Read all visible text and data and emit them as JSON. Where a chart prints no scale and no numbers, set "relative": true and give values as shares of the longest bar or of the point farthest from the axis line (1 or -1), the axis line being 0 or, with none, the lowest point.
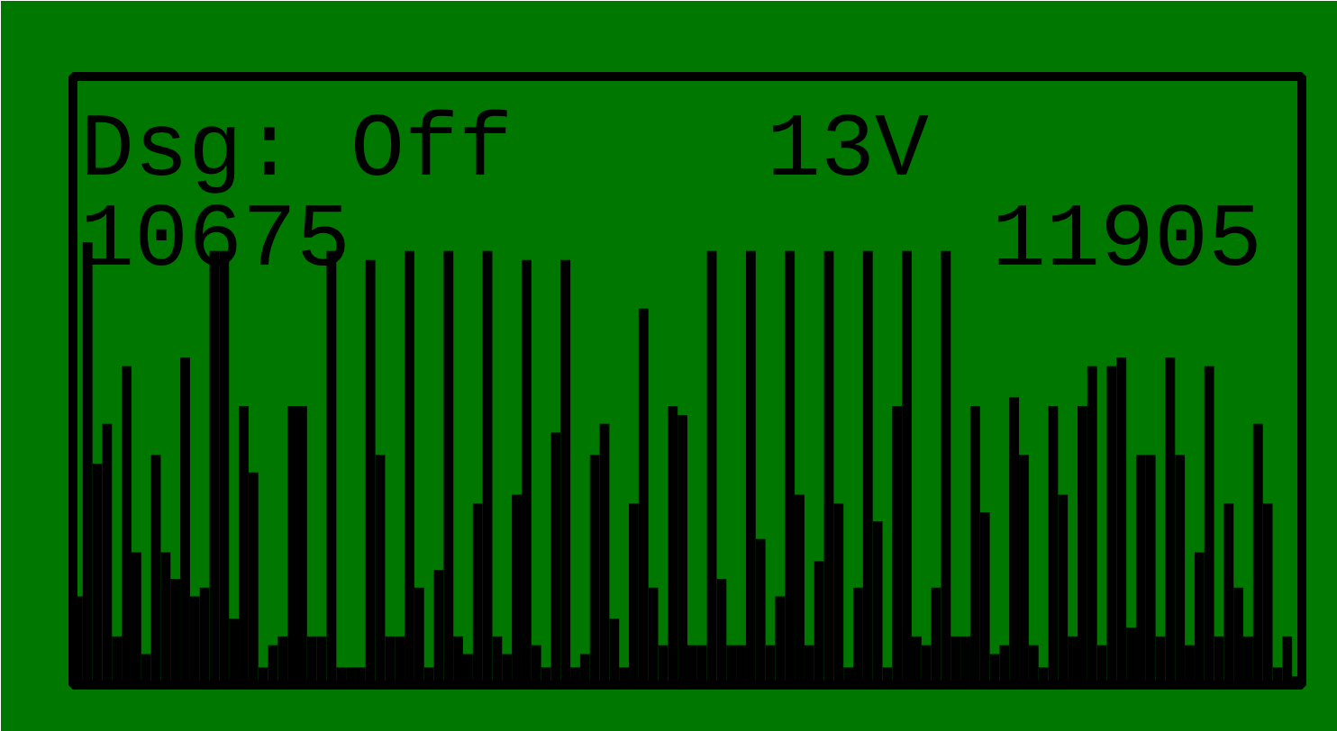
{
  "chart_data": {
    "type": "bar",
    "relative": true,
    "color": "#000000",
    "annotations": [
      "Dsg: Off",
      "13V",
      "10675",
      "11905"
    ],
    "categories": [
      null,
      null,
      null,
      null,
      null,
      null,
      null,
      null,
      null,
      null,
      null,
      null,
      null,
      null,
      null,
      null,
      null,
      null,
      null,
      null,
      null,
      null,
      null,
      null,
      null,
      null,
      null,
      null,
      null,
      null,
      null,
      null,
      null,
      null,
      null,
      null,
      null,
      null,
      null,
      null,
      null,
      null,
      null,
      null,
      null,
      null,
      null,
      null,
      null,
      null,
      null,
      null,
      null,
      null,
      null,
      null,
      null,
      null,
      null,
      null,
      null,
      null,
      null,
      null,
      null,
      null,
      null,
      null,
      null,
      null,
      null,
      null,
      null,
      null,
      null,
      null,
      null,
      null,
      null,
      null,
      null,
      null,
      null,
      null,
      null,
      null,
      null,
      null,
      null,
      null,
      null,
      null,
      null,
      null,
      null,
      null,
      null,
      null,
      null,
      null,
      null,
      null,
      null,
      null,
      null,
      null,
      null,
      null,
      null,
      null,
      null,
      null,
      null,
      null,
      null,
      null,
      null,
      null,
      null,
      null,
      null,
      null,
      null,
      null,
      null,
      null
    ],
    "values": [
      0.2,
      1,
      0.5,
      0.59,
      0.11,
      0.72,
      0.3,
      0.07,
      0.52,
      0.3,
      0.24,
      0.74,
      0.2,
      0.22,
      0.98,
      0.98,
      0.15,
      0.63,
      0.48,
      0.04,
      0.09,
      0.11,
      0.63,
      0.63,
      0.11,
      0.11,
      0.98,
      0.04,
      0.04,
      0.04,
      0.96,
      0.52,
      0.11,
      0.11,
      0.98,
      0.22,
      0.04,
      0.26,
      0.98,
      0.11,
      0.07,
      0.41,
      0.98,
      0.11,
      0.07,
      0.43,
      0.96,
      0.09,
      0.04,
      0.57,
      0.96,
      0.04,
      0.07,
      0.52,
      0.59,
      0.15,
      0.04,
      0.41,
      0.85,
      0.22,
      0.09,
      0.63,
      0.61,
      0.09,
      0.09,
      0.98,
      0.24,
      0.09,
      0.09,
      0.98,
      0.33,
      0.09,
      0.2,
      0.98,
      0.43,
      0.09,
      0.28,
      0.98,
      0.41,
      0.04,
      0.22,
      0.98,
      0.37,
      0.04,
      0.63,
      0.98,
      0.11,
      0.09,
      0.22,
      0.98,
      0.11,
      0.11,
      0.63,
      0.39,
      0.07,
      0.09,
      0.65,
      0.52,
      0.09,
      0.04,
      0.63,
      0.43,
      0.11,
      0.63,
      0.72,
      0.09,
      0.72,
      0.74,
      0.13,
      0.52,
      0.52,
      0.11,
      0.74,
      0.52,
      0.09,
      0.3,
      0.72,
      0.11,
      0.41,
      0.22,
      0.11,
      0.59,
      0.41,
      0.04,
      0.11,
      0.02
    ]
  }
}
